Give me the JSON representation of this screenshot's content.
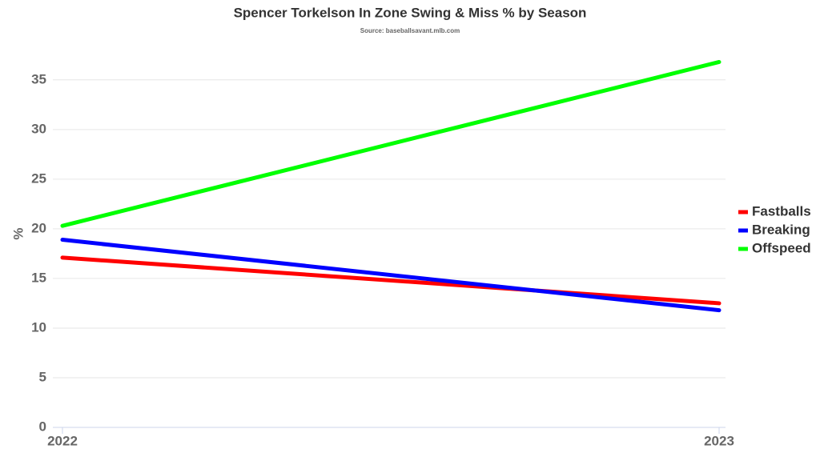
{
  "chart_data": {
    "type": "line",
    "title": "Spencer Torkelson In Zone Swing & Miss % by Season",
    "subtitle": "Source: baseballsavant.mlb.com",
    "y_label": "%",
    "categories": [
      "2022",
      "2023"
    ],
    "series": [
      {
        "name": "Fastballs",
        "color": "#ff0000",
        "values": [
          17.1,
          12.5
        ]
      },
      {
        "name": "Breaking",
        "color": "#0000ff",
        "values": [
          18.9,
          11.8
        ]
      },
      {
        "name": "Offspeed",
        "color": "#00ff00",
        "values": [
          20.3,
          36.8
        ]
      }
    ],
    "ylim": [
      0,
      37
    ],
    "yticks": [
      0,
      5,
      10,
      15,
      20,
      25,
      30,
      35
    ],
    "grid": true,
    "legend": "right"
  }
}
